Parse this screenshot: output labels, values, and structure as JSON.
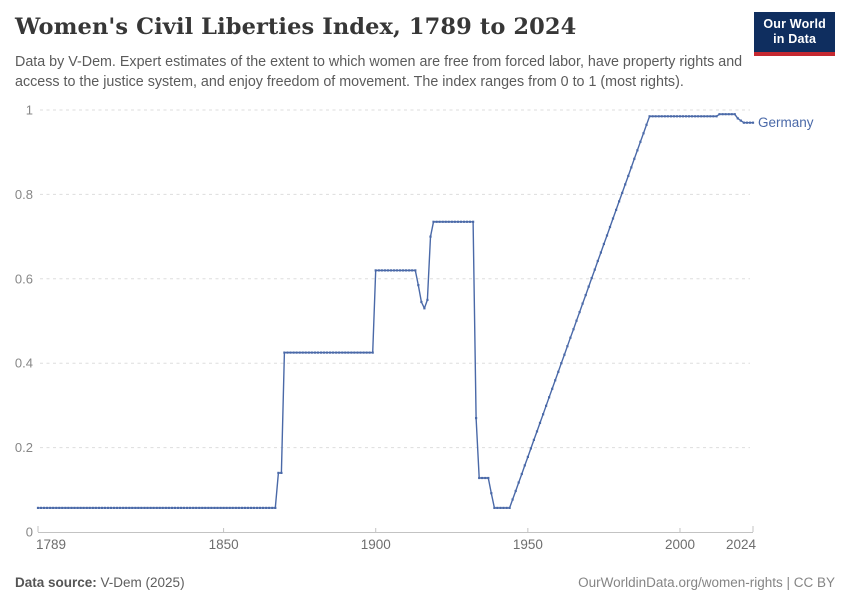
{
  "header": {
    "title": "Women's Civil Liberties Index, 1789 to 2024",
    "subtitle": "Data by V-Dem. Expert estimates of the extent to which women are free from forced labor, have property rights and access to the justice system, and enjoy freedom of movement. The index ranges from 0 to 1 (most rights).",
    "logo": {
      "line1": "Our World",
      "line2": "in Data"
    }
  },
  "footer": {
    "source_label": "Data source:",
    "source_value": " V-Dem (2025)",
    "credit": "OurWorldinData.org/women-rights | CC BY"
  },
  "chart_data": {
    "type": "line",
    "title": "Women's Civil Liberties Index, 1789 to 2024",
    "xlabel": "",
    "ylabel": "",
    "xlim": [
      1789,
      2024
    ],
    "ylim": [
      0,
      1
    ],
    "grid": "dashed-horizontal",
    "legend_position": "end-of-line-label",
    "x_ticks": [
      {
        "v": 1789,
        "label": "1789",
        "anchor": "start"
      },
      {
        "v": 1850,
        "label": "1850",
        "anchor": "middle"
      },
      {
        "v": 1900,
        "label": "1900",
        "anchor": "middle"
      },
      {
        "v": 1950,
        "label": "1950",
        "anchor": "middle"
      },
      {
        "v": 2000,
        "label": "2000",
        "anchor": "middle"
      },
      {
        "v": 2024,
        "label": "2024",
        "anchor": "end"
      }
    ],
    "y_ticks": [
      {
        "v": 0,
        "label": "0"
      },
      {
        "v": 0.2,
        "label": "0.2"
      },
      {
        "v": 0.4,
        "label": "0.4"
      },
      {
        "v": 0.6,
        "label": "0.6"
      },
      {
        "v": 0.8,
        "label": "0.8"
      },
      {
        "v": 1,
        "label": "1"
      }
    ],
    "series": [
      {
        "name": "Germany",
        "color": "#4a69a8",
        "segments": [
          {
            "from": 1789,
            "to": 1867,
            "value": 0.057
          },
          {
            "from": 1868,
            "to": 1869,
            "value": 0.14
          },
          {
            "from": 1870,
            "to": 1899,
            "value": 0.425
          },
          {
            "from": 1900,
            "to": 1913,
            "value": 0.62
          },
          {
            "from": 1914,
            "to": 1914,
            "value": 0.585
          },
          {
            "from": 1915,
            "to": 1915,
            "value": 0.545
          },
          {
            "from": 1916,
            "to": 1916,
            "value": 0.53
          },
          {
            "from": 1917,
            "to": 1917,
            "value": 0.55
          },
          {
            "from": 1918,
            "to": 1918,
            "value": 0.7
          },
          {
            "from": 1919,
            "to": 1932,
            "value": 0.735
          },
          {
            "from": 1933,
            "to": 1933,
            "value": 0.27
          },
          {
            "from": 1934,
            "to": 1937,
            "value": 0.128
          },
          {
            "from": 1938,
            "to": 1938,
            "value": 0.092
          },
          {
            "from": 1939,
            "to": 1944,
            "value": 0.057
          },
          {
            "from": 1945,
            "to": 1989,
            "mode": "linear",
            "from_value": 0.077,
            "to_value": 0.965
          },
          {
            "from": 1990,
            "to": 2012,
            "value": 0.985
          },
          {
            "from": 2013,
            "to": 2018,
            "value": 0.99
          },
          {
            "from": 2019,
            "to": 2019,
            "value": 0.98
          },
          {
            "from": 2020,
            "to": 2020,
            "value": 0.975
          },
          {
            "from": 2021,
            "to": 2024,
            "value": 0.97
          }
        ]
      }
    ]
  },
  "colors": {
    "line": "#4a69a8",
    "grid": "#dddddd",
    "axis": "#c3c3c3",
    "y_tick_text": "#878787",
    "x_tick_text": "#6e6e6e",
    "series_label": "#4a69a8"
  }
}
